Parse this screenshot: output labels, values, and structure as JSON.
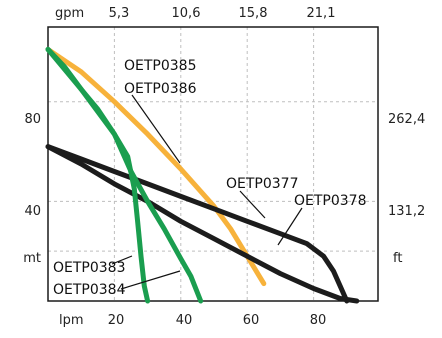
{
  "chart_data": {
    "type": "line",
    "x_unit_bottom": "lpm",
    "x_unit_top": "gpm",
    "y_unit_left": "mt",
    "y_unit_right": "ft",
    "xlim": [
      0,
      100
    ],
    "ylim": [
      0,
      110
    ],
    "grid": true,
    "x_ticks_bottom": [
      {
        "value": 20,
        "label": "20"
      },
      {
        "value": 40,
        "label": "40"
      },
      {
        "value": 60,
        "label": "60"
      },
      {
        "value": 80,
        "label": "80"
      }
    ],
    "x_ticks_top": [
      {
        "value": 20,
        "label": "5,3"
      },
      {
        "value": 40,
        "label": "10,6"
      },
      {
        "value": 60,
        "label": "15,8"
      },
      {
        "value": 80,
        "label": "21,1"
      }
    ],
    "y_ticks_left": [
      {
        "value": 40,
        "label": "40"
      },
      {
        "value": 80,
        "label": "80"
      }
    ],
    "y_ticks_right": [
      {
        "value": 40,
        "label": "131,2"
      },
      {
        "value": 80,
        "label": "262,4"
      }
    ],
    "y_unit_row_value": 20,
    "series": [
      {
        "name": "OETP0385 OETP0386",
        "labels": [
          "OETP0385",
          "OETP0386"
        ],
        "color": "#f7b23b",
        "points": [
          [
            0,
            101
          ],
          [
            10,
            92
          ],
          [
            20,
            80
          ],
          [
            30,
            67
          ],
          [
            40,
            53
          ],
          [
            50,
            38
          ],
          [
            55,
            29
          ],
          [
            60,
            18
          ],
          [
            65,
            7
          ]
        ]
      },
      {
        "name": "OETP0377",
        "labels": [
          "OETP0377"
        ],
        "color": "#1c1c1c",
        "points": [
          [
            0,
            62
          ],
          [
            10,
            57
          ],
          [
            20,
            52
          ],
          [
            30,
            47
          ],
          [
            40,
            42
          ],
          [
            50,
            37
          ],
          [
            60,
            32
          ],
          [
            70,
            27
          ],
          [
            78,
            23
          ],
          [
            83,
            18
          ],
          [
            86,
            12
          ],
          [
            88,
            6
          ],
          [
            90,
            0
          ]
        ]
      },
      {
        "name": "OETP0378",
        "labels": [
          "OETP0378"
        ],
        "color": "#1c1c1c",
        "points": [
          [
            0,
            62
          ],
          [
            10,
            55
          ],
          [
            20,
            47
          ],
          [
            30,
            40
          ],
          [
            40,
            32
          ],
          [
            50,
            25
          ],
          [
            60,
            18
          ],
          [
            70,
            11
          ],
          [
            80,
            5
          ],
          [
            88,
            1
          ],
          [
            93,
            -1
          ]
        ]
      },
      {
        "name": "OETP0383",
        "labels": [
          "OETP0383"
        ],
        "color": "#1a9e4f",
        "points": [
          [
            0,
            101
          ],
          [
            5,
            94
          ],
          [
            10,
            85
          ],
          [
            15,
            77
          ],
          [
            20,
            67
          ],
          [
            24,
            58
          ],
          [
            26,
            45
          ],
          [
            27,
            32
          ],
          [
            28,
            18
          ],
          [
            29,
            6
          ],
          [
            30,
            0
          ]
        ]
      },
      {
        "name": "OETP0384",
        "labels": [
          "OETP0384"
        ],
        "color": "#1a9e4f",
        "points": [
          [
            0,
            101
          ],
          [
            10,
            85
          ],
          [
            20,
            67
          ],
          [
            25,
            52
          ],
          [
            30,
            40
          ],
          [
            35,
            29
          ],
          [
            40,
            17
          ],
          [
            43,
            10
          ],
          [
            46,
            0
          ]
        ]
      }
    ]
  },
  "labels": {
    "gpm": "gpm",
    "lpm": "lpm",
    "mt": "mt",
    "ft": "ft",
    "ylabel_left_40": "40",
    "ylabel_left_80": "80",
    "ylabel_right_40": "131,2",
    "ylabel_right_80": "262,4",
    "top_20": "5,3",
    "top_40": "10,6",
    "top_60": "15,8",
    "top_80": "21,1",
    "bottom_20": "20",
    "bottom_40": "40",
    "bottom_60": "60",
    "bottom_80": "80",
    "curve_0385": "OETP0385",
    "curve_0386": "OETP0386",
    "curve_0377": "OETP0377",
    "curve_0378": "OETP0378",
    "curve_0383": "OETP0383",
    "curve_0384": "OETP0384"
  }
}
